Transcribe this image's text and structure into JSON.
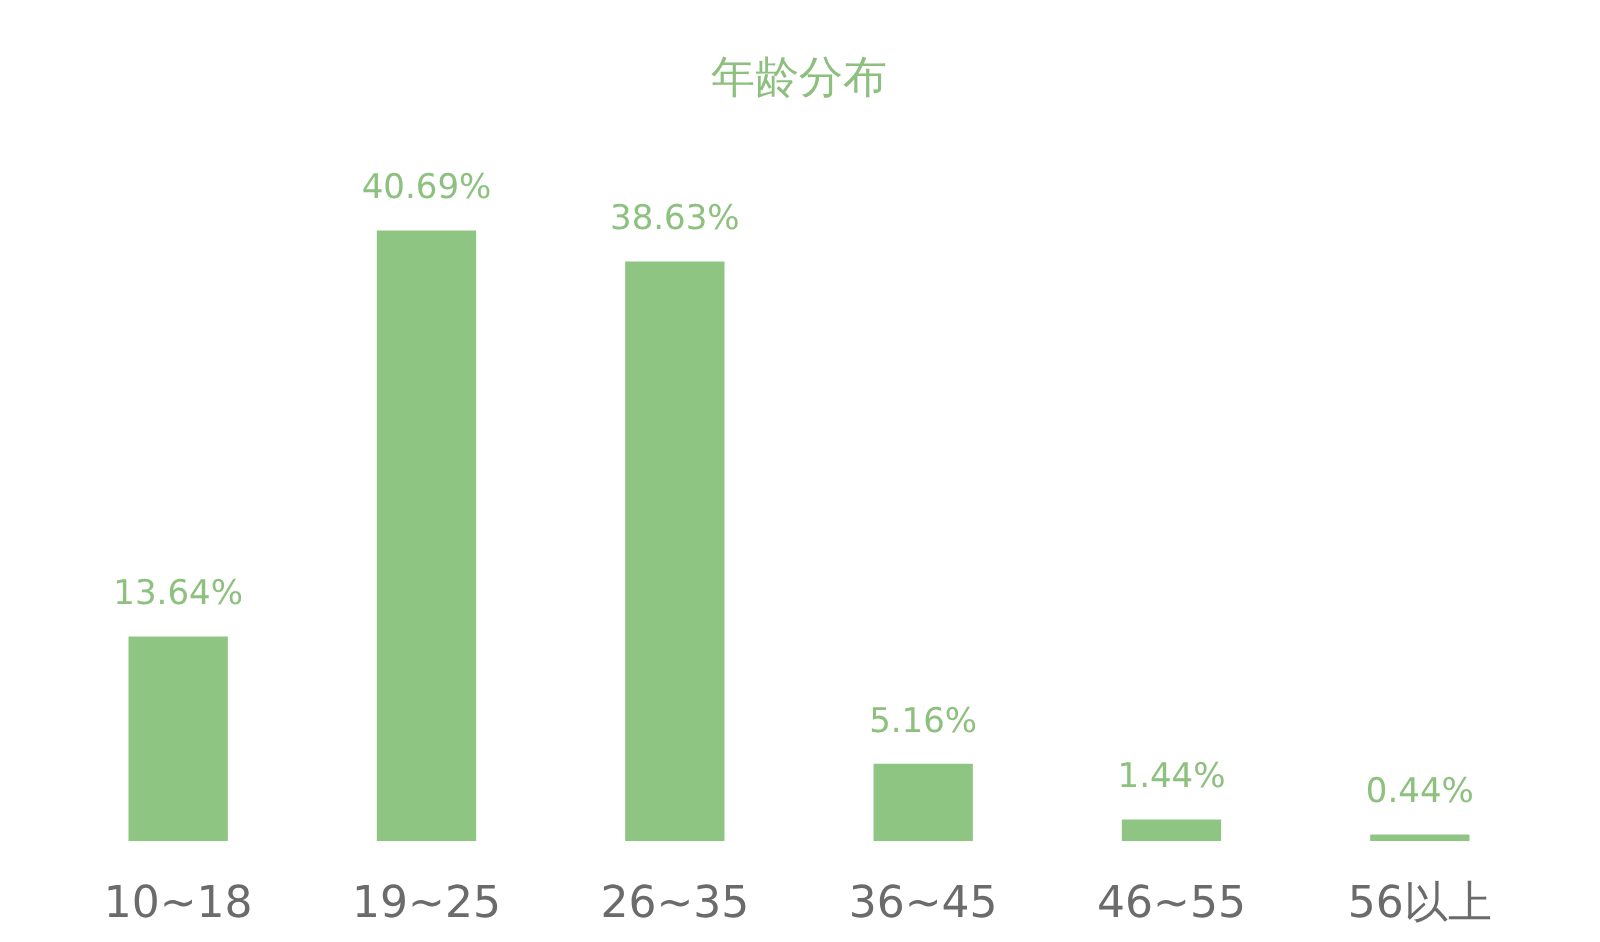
{
  "chart_data": {
    "type": "bar",
    "title": "年龄分布",
    "categories": [
      "10~18",
      "19~25",
      "26~35",
      "36~45",
      "46~55",
      "56以上"
    ],
    "values": [
      13.64,
      40.69,
      38.63,
      5.16,
      1.44,
      0.44
    ],
    "value_labels": [
      "13.64%",
      "40.69%",
      "38.63%",
      "5.16%",
      "1.44%",
      "0.44%"
    ],
    "color": "#8fc583"
  }
}
